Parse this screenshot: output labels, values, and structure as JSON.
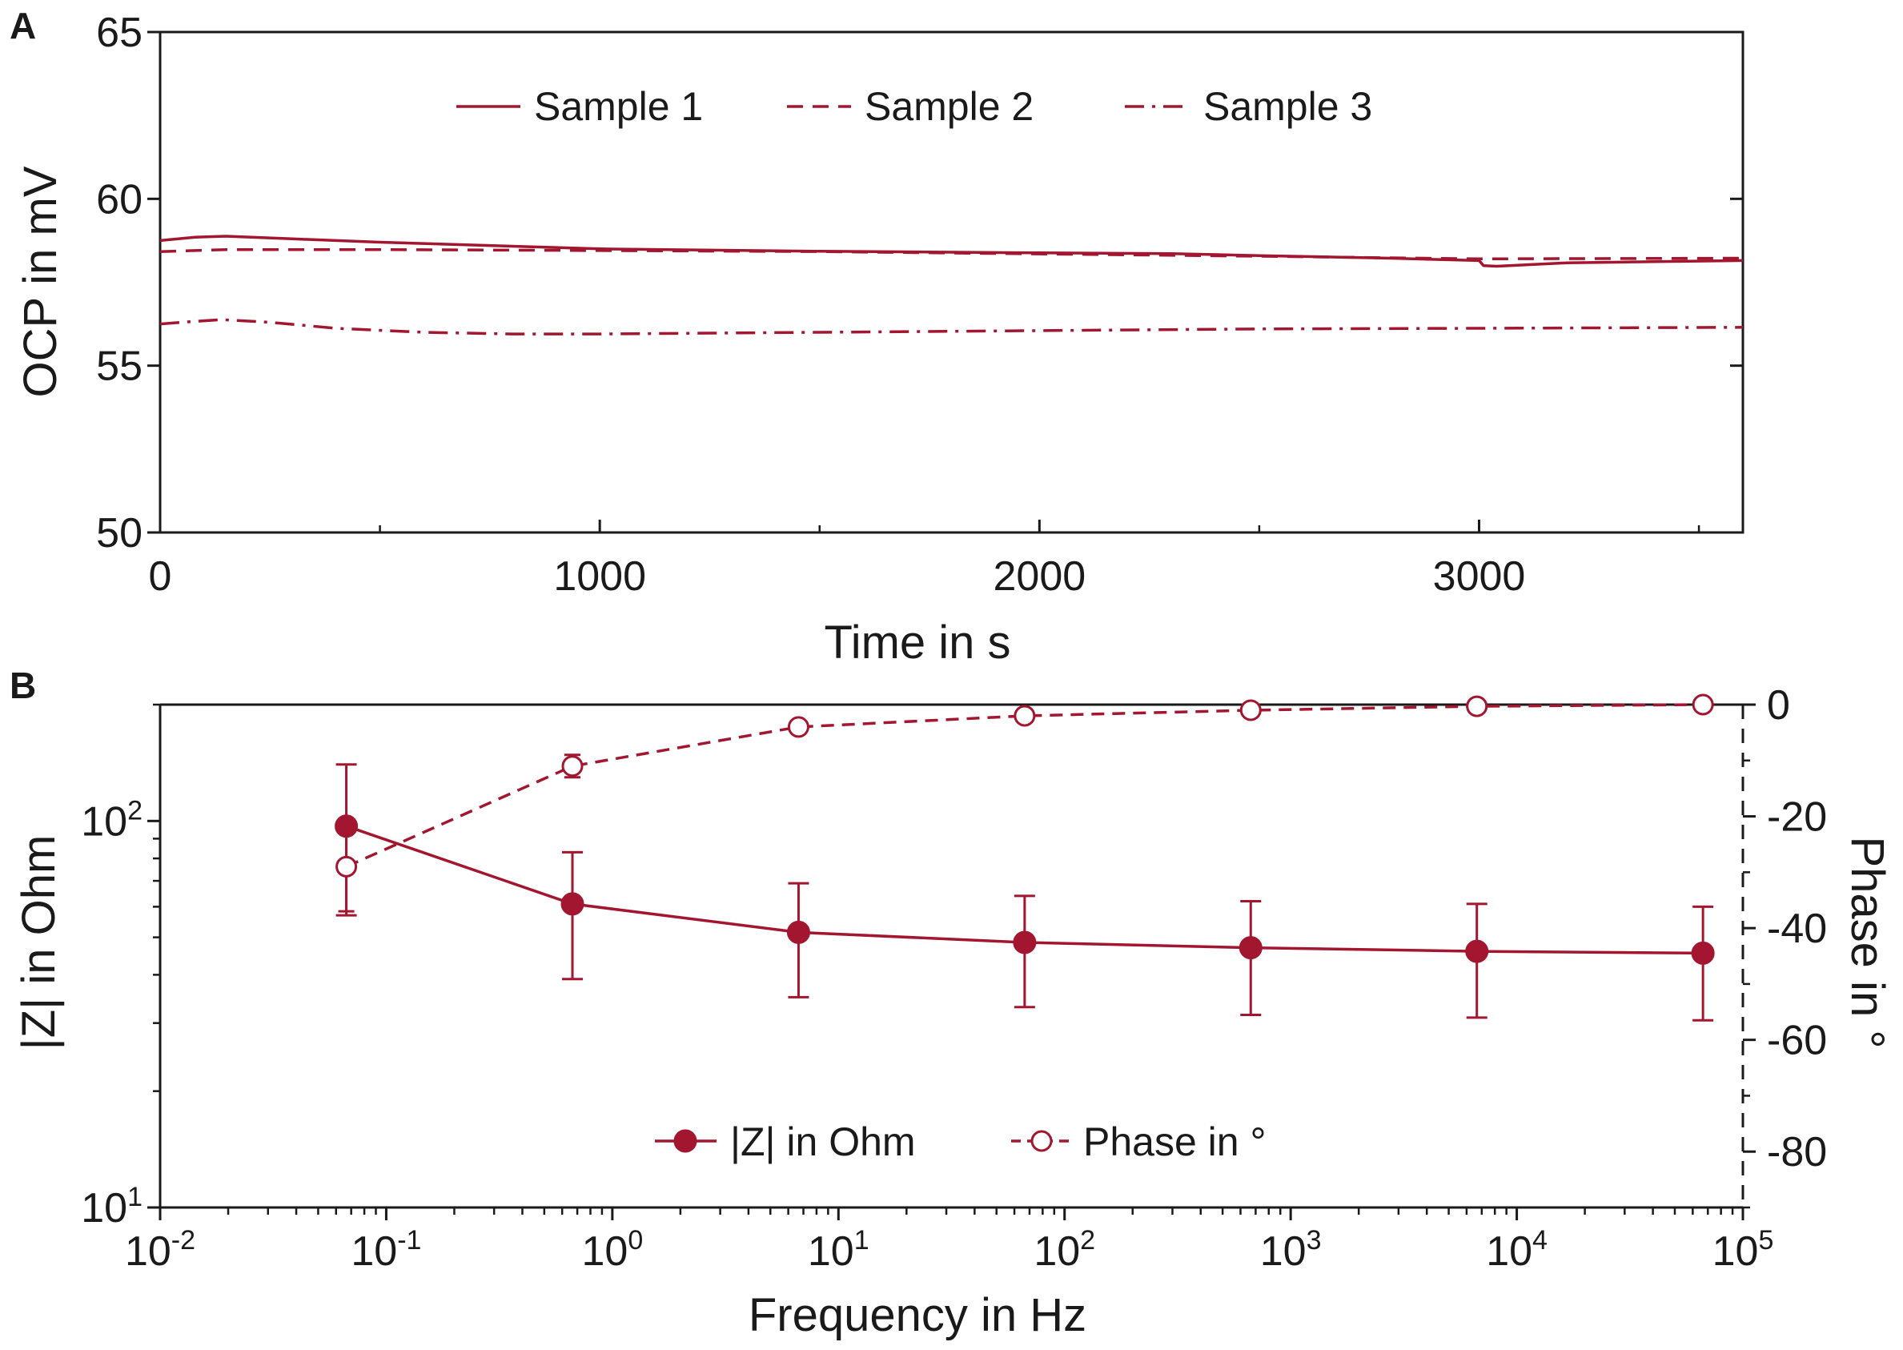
{
  "figure": {
    "panels": [
      "A",
      "B"
    ]
  },
  "colors": {
    "series": "#a3162f",
    "axis": "#1a1a1a",
    "background": "#ffffff"
  },
  "chart_data": [
    {
      "panel": "A",
      "type": "line",
      "title": "",
      "xlabel": "Time in s",
      "ylabel": "OCP in mV",
      "xlim": [
        0,
        3600
      ],
      "ylim": [
        50,
        65
      ],
      "xticks": [
        0,
        1000,
        2000,
        3000
      ],
      "xtick_labels": [
        "0",
        "1000",
        "2000",
        "3000"
      ],
      "yticks": [
        50,
        55,
        60,
        65
      ],
      "ytick_labels": [
        "50",
        "55",
        "60",
        "65"
      ],
      "grid": false,
      "legend_position": "top",
      "series": [
        {
          "name": "Sample 1",
          "linestyle": "solid",
          "x": [
            0,
            80,
            150,
            300,
            500,
            800,
            1000,
            1500,
            2000,
            2300,
            2500,
            2800,
            3000,
            3010,
            3040,
            3200,
            3400,
            3600
          ],
          "y": [
            58.75,
            58.85,
            58.88,
            58.8,
            58.7,
            58.58,
            58.5,
            58.43,
            58.38,
            58.36,
            58.3,
            58.22,
            58.15,
            58.0,
            57.98,
            58.08,
            58.12,
            58.15
          ]
        },
        {
          "name": "Sample 2",
          "linestyle": "dashed",
          "x": [
            0,
            150,
            500,
            1000,
            1500,
            2000,
            2500,
            3000,
            3600
          ],
          "y": [
            58.42,
            58.48,
            58.48,
            58.45,
            58.42,
            58.35,
            58.28,
            58.2,
            58.22
          ]
        },
        {
          "name": "Sample 3",
          "linestyle": "dashdot",
          "x": [
            0,
            70,
            140,
            250,
            400,
            600,
            800,
            1000,
            1500,
            2000,
            2500,
            3000,
            3600
          ],
          "y": [
            56.25,
            56.32,
            56.38,
            56.3,
            56.12,
            56.0,
            55.95,
            55.95,
            56.0,
            56.05,
            56.1,
            56.12,
            56.15
          ]
        }
      ]
    },
    {
      "panel": "B",
      "type": "line",
      "title": "",
      "xlabel": "Frequency in Hz",
      "ylabel": "|Z| in Ohm",
      "y2label": "Phase in °",
      "xscale": "log",
      "yscale": "log",
      "xlim": [
        0.01,
        100000
      ],
      "ylim": [
        10,
        200
      ],
      "y2lim": [
        -90,
        0
      ],
      "xtick_base": "10",
      "xtick_exponents": [
        "-2",
        "-1",
        "0",
        "1",
        "2",
        "3",
        "4",
        "5"
      ],
      "ytick_base": "10",
      "ytick_exponents": [
        "1",
        "2"
      ],
      "y2ticks": [
        0,
        -20,
        -40,
        -60,
        -80
      ],
      "y2tick_labels": [
        "0",
        "-20",
        "-40",
        "-60",
        "-80"
      ],
      "grid": false,
      "legend_position": "bottom-center",
      "series": [
        {
          "name": "|Z| in Ohm",
          "axis": "left",
          "linestyle": "solid",
          "marker": "filled-circle",
          "x": [
            0.0666,
            0.666,
            6.66,
            66.6,
            666,
            6660,
            66600
          ],
          "y": [
            97,
            61,
            51.5,
            48.5,
            47,
            46,
            45.5
          ],
          "error_low": [
            57,
            39,
            35,
            33,
            31.5,
            31,
            30.5
          ],
          "error_high": [
            140,
            83,
            69,
            64,
            62,
            61,
            60
          ]
        },
        {
          "name": "Phase in °",
          "axis": "right",
          "linestyle": "dashed",
          "marker": "open-circle",
          "x": [
            0.0666,
            0.666,
            6.66,
            66.6,
            666,
            6660,
            66600
          ],
          "y": [
            -29,
            -11,
            -4,
            -2,
            -1,
            -0.3,
            0
          ],
          "error_low": [
            -37,
            -13,
            -5,
            -2.8,
            -1.8,
            -1,
            -0.5
          ],
          "error_high": [
            -21,
            -9,
            -3,
            -1.2,
            -0.2,
            0.4,
            0.5
          ]
        }
      ]
    }
  ]
}
